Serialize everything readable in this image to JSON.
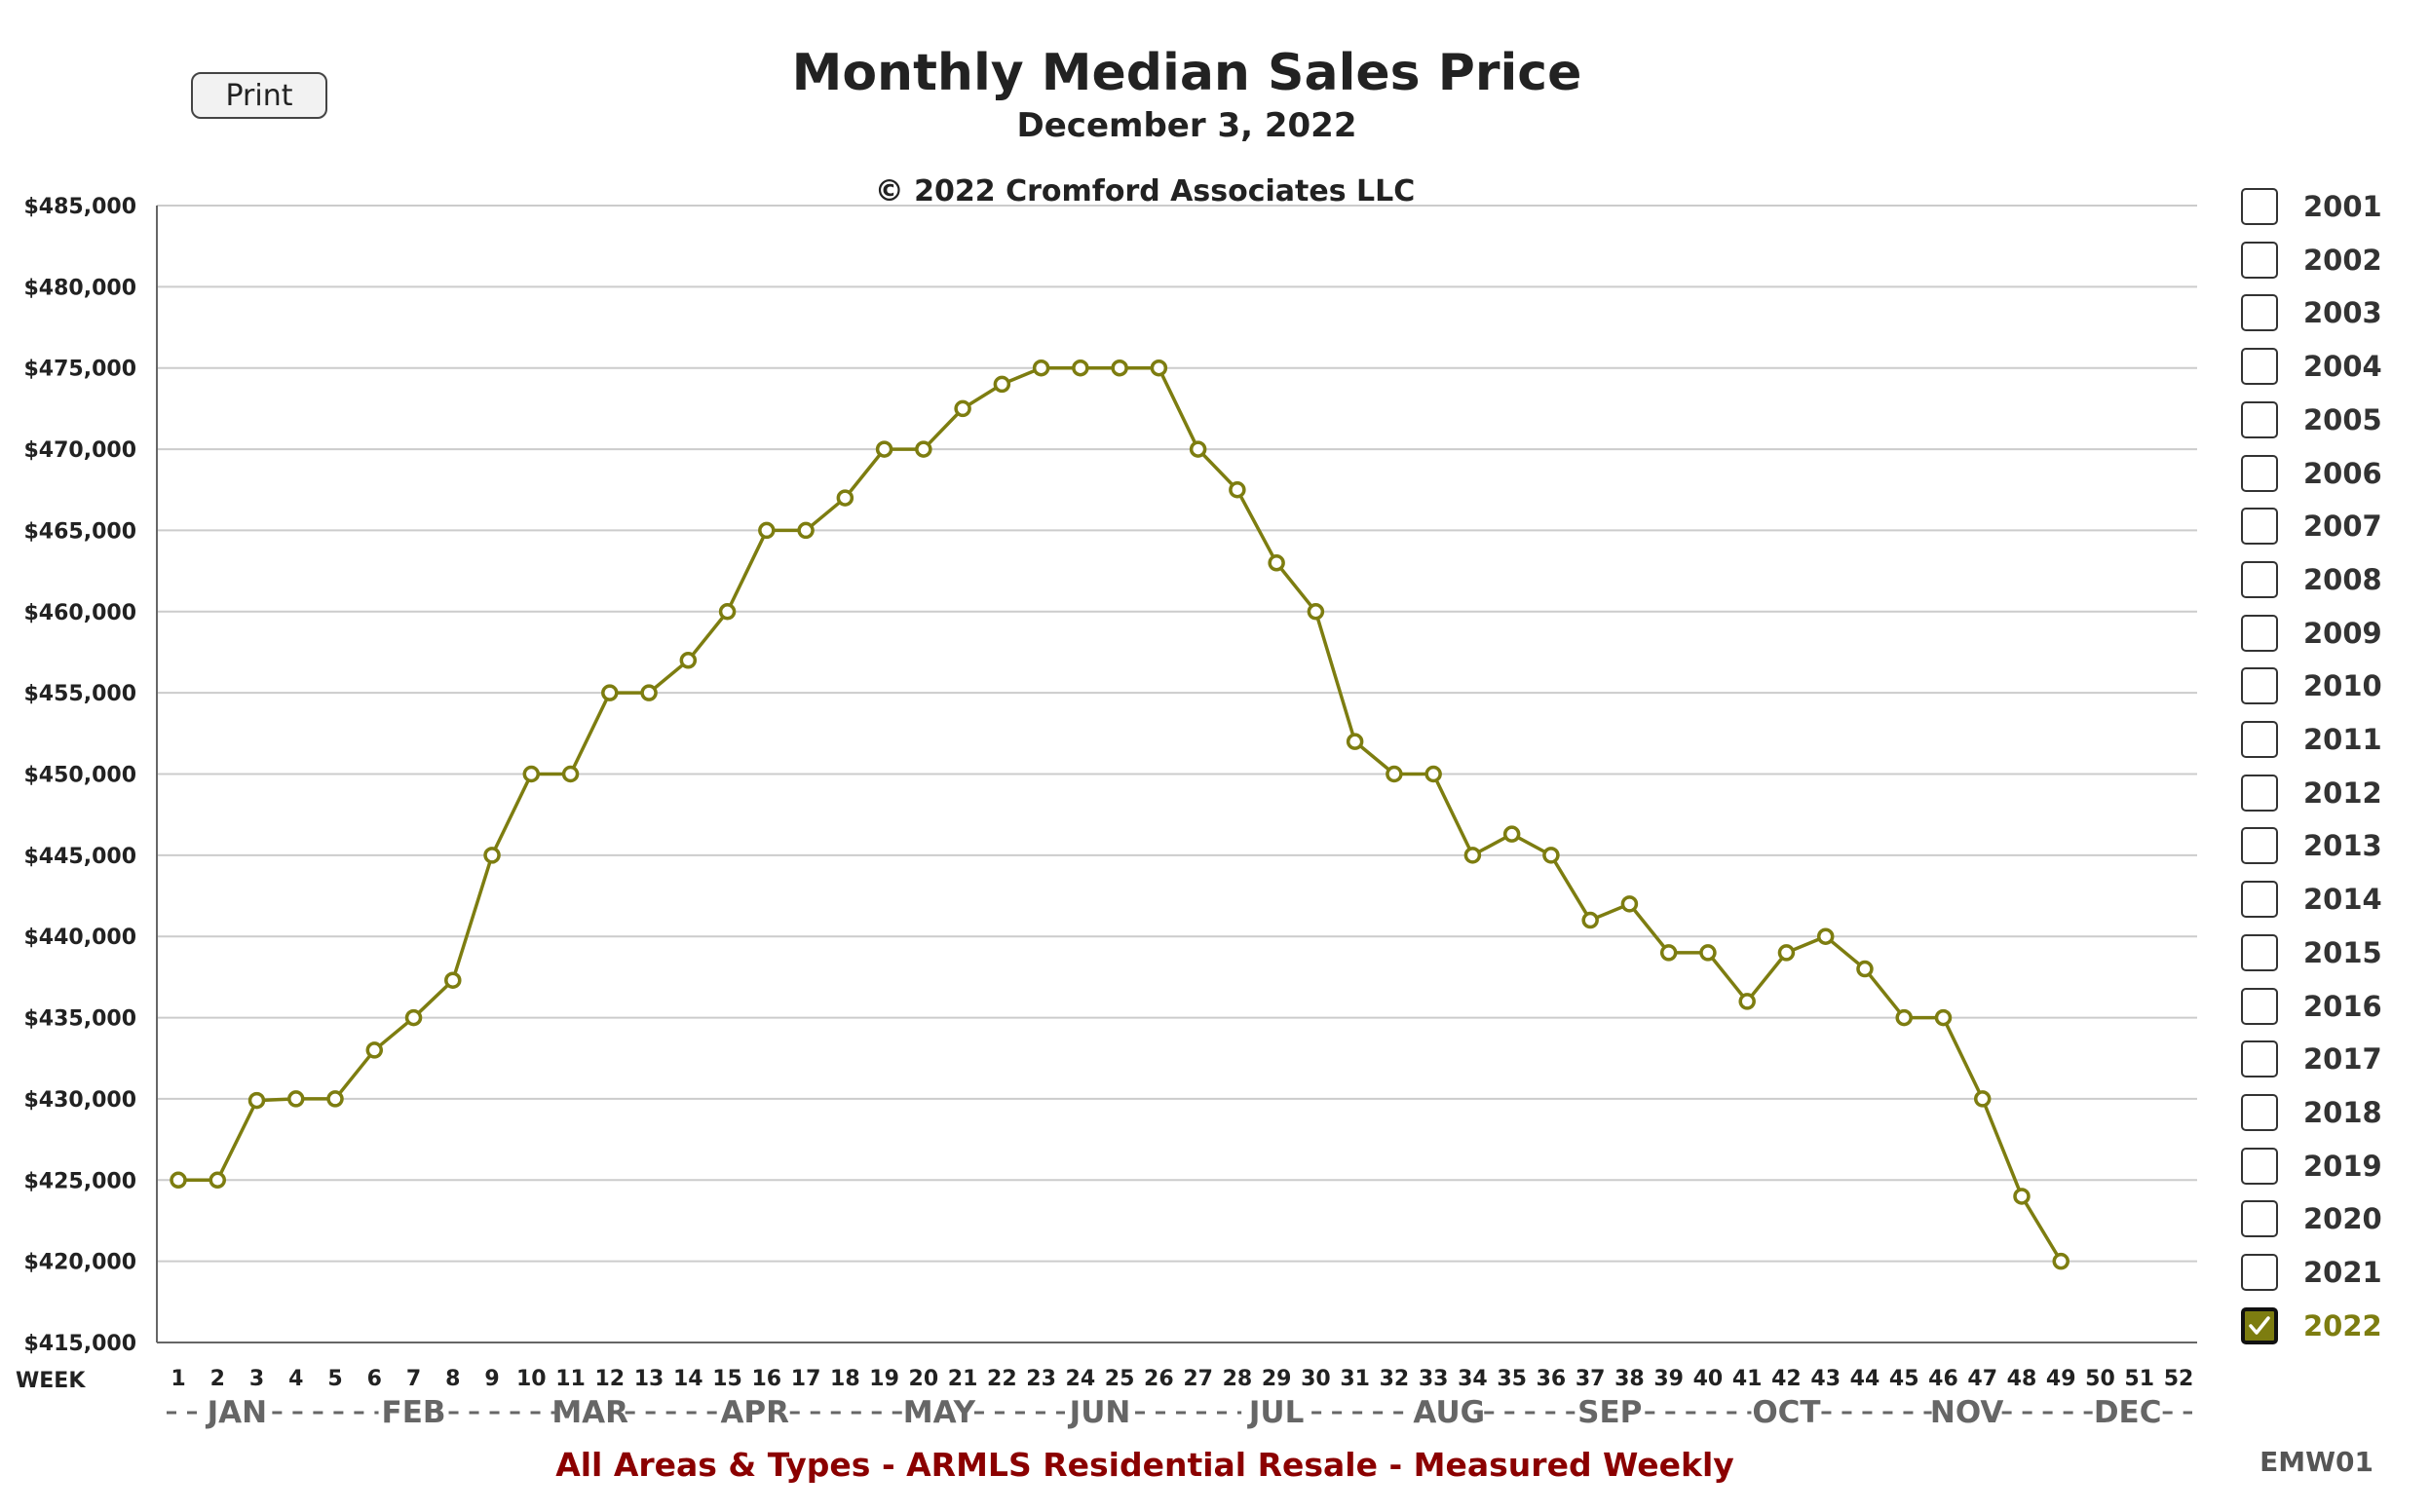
{
  "print_label": "Print",
  "footer": "All Areas & Types - ARMLS Residential Resale - Measured Weekly",
  "report_code": "EMW01",
  "week_label": "WEEK",
  "colors": {
    "series": "#7d7d10",
    "grid": "#cccccc",
    "axis": "#666666",
    "footer": "#8b0000"
  },
  "legend": {
    "items": [
      "2001",
      "2002",
      "2003",
      "2004",
      "2005",
      "2006",
      "2007",
      "2008",
      "2009",
      "2010",
      "2011",
      "2012",
      "2013",
      "2014",
      "2015",
      "2016",
      "2017",
      "2018",
      "2019",
      "2020",
      "2021",
      "2022"
    ],
    "checked": [
      "2022"
    ]
  },
  "chart_data": {
    "type": "line",
    "title": "Monthly Median Sales Price",
    "subtitle": "December 3, 2022",
    "copyright": "© 2022 Cromford Associates LLC",
    "xlabel": "WEEK",
    "xlim": [
      1,
      52
    ],
    "ylim": [
      415000,
      485000
    ],
    "y_ticks": [
      415000,
      420000,
      425000,
      430000,
      435000,
      440000,
      445000,
      450000,
      455000,
      460000,
      465000,
      470000,
      475000,
      480000,
      485000
    ],
    "y_tick_labels": [
      "$415,000",
      "$420,000",
      "$425,000",
      "$430,000",
      "$435,000",
      "$440,000",
      "$445,000",
      "$450,000",
      "$455,000",
      "$460,000",
      "$465,000",
      "$470,000",
      "$475,000",
      "$480,000",
      "$485,000"
    ],
    "grid": true,
    "months": [
      {
        "label": "JAN",
        "week": 2.5
      },
      {
        "label": "FEB",
        "week": 7
      },
      {
        "label": "MAR",
        "week": 11.5
      },
      {
        "label": "APR",
        "week": 15.7
      },
      {
        "label": "MAY",
        "week": 20.4
      },
      {
        "label": "JUN",
        "week": 24.5
      },
      {
        "label": "JUL",
        "week": 29
      },
      {
        "label": "AUG",
        "week": 33.4
      },
      {
        "label": "SEP",
        "week": 37.5
      },
      {
        "label": "OCT",
        "week": 42
      },
      {
        "label": "NOV",
        "week": 46.6
      },
      {
        "label": "DEC",
        "week": 50.7
      }
    ],
    "series": [
      {
        "name": "2022",
        "x": [
          1,
          2,
          3,
          4,
          5,
          6,
          7,
          8,
          9,
          10,
          11,
          12,
          13,
          14,
          15,
          16,
          17,
          18,
          19,
          20,
          21,
          22,
          23,
          24,
          25,
          26,
          27,
          28,
          29,
          30,
          31,
          32,
          33,
          34,
          35,
          36,
          37,
          38,
          39,
          40,
          41,
          42,
          43,
          44,
          45,
          46,
          47,
          48,
          49
        ],
        "values": [
          425000,
          425000,
          429900,
          430000,
          430000,
          433000,
          435000,
          437300,
          445000,
          450000,
          450000,
          455000,
          455000,
          457000,
          460000,
          465000,
          465000,
          467000,
          470000,
          470000,
          472500,
          474000,
          475000,
          475000,
          475000,
          475000,
          470000,
          467500,
          463000,
          460000,
          452000,
          450000,
          450000,
          445000,
          446300,
          445000,
          441000,
          442000,
          439000,
          439000,
          436000,
          439000,
          440000,
          438000,
          435000,
          435000,
          430000,
          424000,
          420000
        ]
      }
    ]
  }
}
